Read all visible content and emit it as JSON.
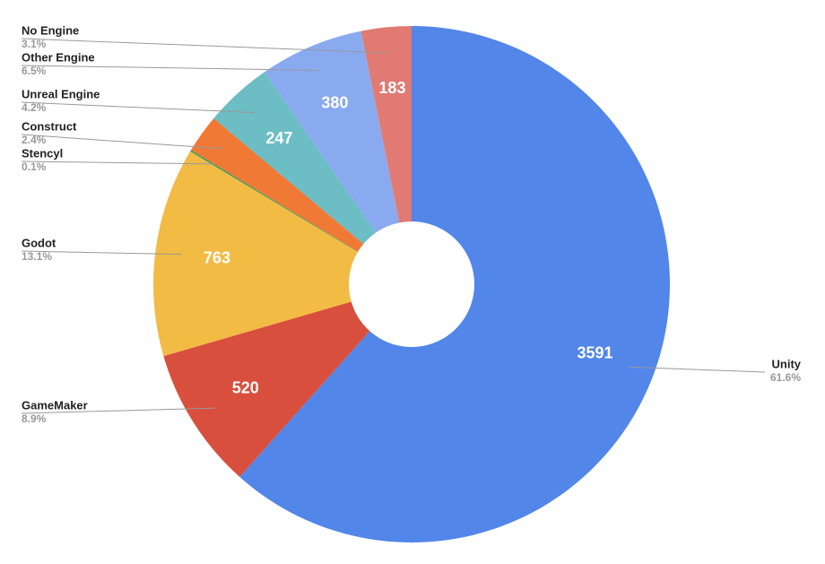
{
  "chart_data": {
    "type": "donut",
    "categories": [
      "Unity",
      "GameMaker",
      "Godot",
      "Stencyl",
      "Construct",
      "Unreal Engine",
      "Other Engine",
      "No Engine"
    ],
    "values": [
      3591,
      520,
      763,
      6,
      140,
      247,
      380,
      183
    ],
    "percent_labels": [
      "61.6%",
      "8.9%",
      "13.1%",
      "0.1%",
      "2.4%",
      "4.2%",
      "6.5%",
      "3.1%"
    ],
    "colors": [
      "#5286e9",
      "#d94f3e",
      "#f2bb44",
      "#3a9f5a",
      "#f07935",
      "#6cbdc4",
      "#8aaaf0",
      "#e07a72"
    ]
  }
}
